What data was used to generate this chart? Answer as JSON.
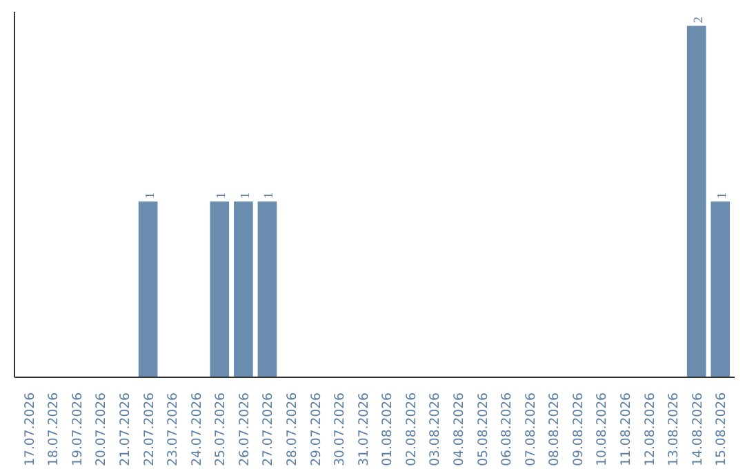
{
  "chart_data": {
    "type": "bar",
    "color": "#6a8caf",
    "categories": [
      "17.07.2026",
      "18.07.2026",
      "19.07.2026",
      "20.07.2026",
      "21.07.2026",
      "22.07.2026",
      "23.07.2026",
      "24.07.2026",
      "25.07.2026",
      "26.07.2026",
      "27.07.2026",
      "28.07.2026",
      "29.07.2026",
      "30.07.2026",
      "31.07.2026",
      "01.08.2026",
      "02.08.2026",
      "03.08.2026",
      "04.08.2026",
      "05.08.2026",
      "06.08.2026",
      "07.08.2026",
      "08.08.2026",
      "09.08.2026",
      "10.08.2026",
      "11.08.2026",
      "12.08.2026",
      "13.08.2026",
      "14.08.2026",
      "15.08.2026"
    ],
    "values": [
      0,
      0,
      0,
      0,
      0,
      1,
      0,
      0,
      1,
      1,
      1,
      0,
      0,
      0,
      0,
      0,
      0,
      0,
      0,
      0,
      0,
      0,
      0,
      0,
      0,
      0,
      0,
      0,
      2,
      1
    ],
    "value_labels": [
      null,
      null,
      null,
      null,
      null,
      "1",
      null,
      null,
      "1",
      "1",
      "1",
      null,
      null,
      null,
      null,
      null,
      null,
      null,
      null,
      null,
      null,
      null,
      null,
      null,
      null,
      null,
      null,
      null,
      "2",
      "1"
    ],
    "tick_labels": "x",
    "grid": false
  }
}
